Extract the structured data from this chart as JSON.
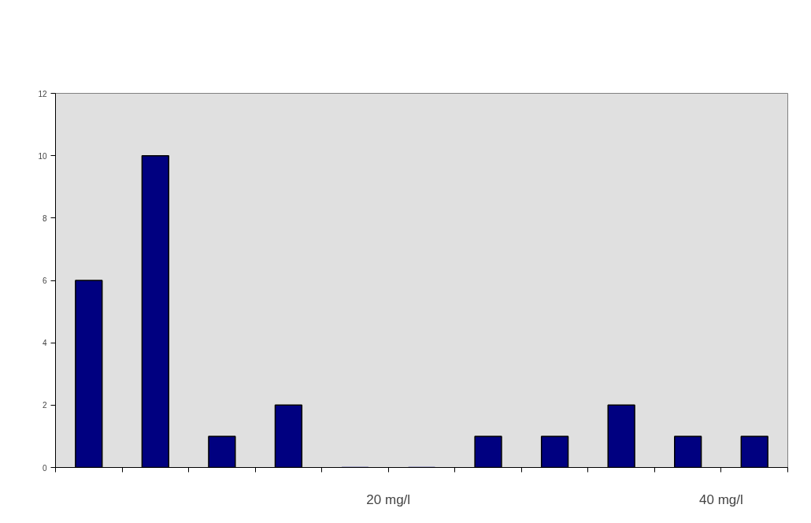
{
  "chart_data": {
    "type": "histogram",
    "bins": [
      0,
      4,
      8,
      12,
      16,
      20,
      24,
      28,
      32,
      36,
      40,
      44
    ],
    "values": [
      6,
      10,
      1,
      2,
      0,
      0,
      1,
      1,
      2,
      1,
      1
    ],
    "color": "#000080",
    "xlim": [
      0,
      44
    ],
    "xticks": [
      {
        "value": 0,
        "label": null
      },
      {
        "value": 4,
        "label": null
      },
      {
        "value": 8,
        "label": null
      },
      {
        "value": 12,
        "label": null
      },
      {
        "value": 16,
        "label": null
      },
      {
        "value": 20,
        "label": "20 mg/l"
      },
      {
        "value": 24,
        "label": null
      },
      {
        "value": 28,
        "label": null
      },
      {
        "value": 32,
        "label": null
      },
      {
        "value": 36,
        "label": null
      },
      {
        "value": 40,
        "label": "40 mg/l"
      },
      {
        "value": 44,
        "label": null
      }
    ],
    "ylim": [
      0,
      12
    ],
    "yticks": [
      0,
      2,
      4,
      6,
      8,
      10,
      12
    ],
    "grid": false
  }
}
